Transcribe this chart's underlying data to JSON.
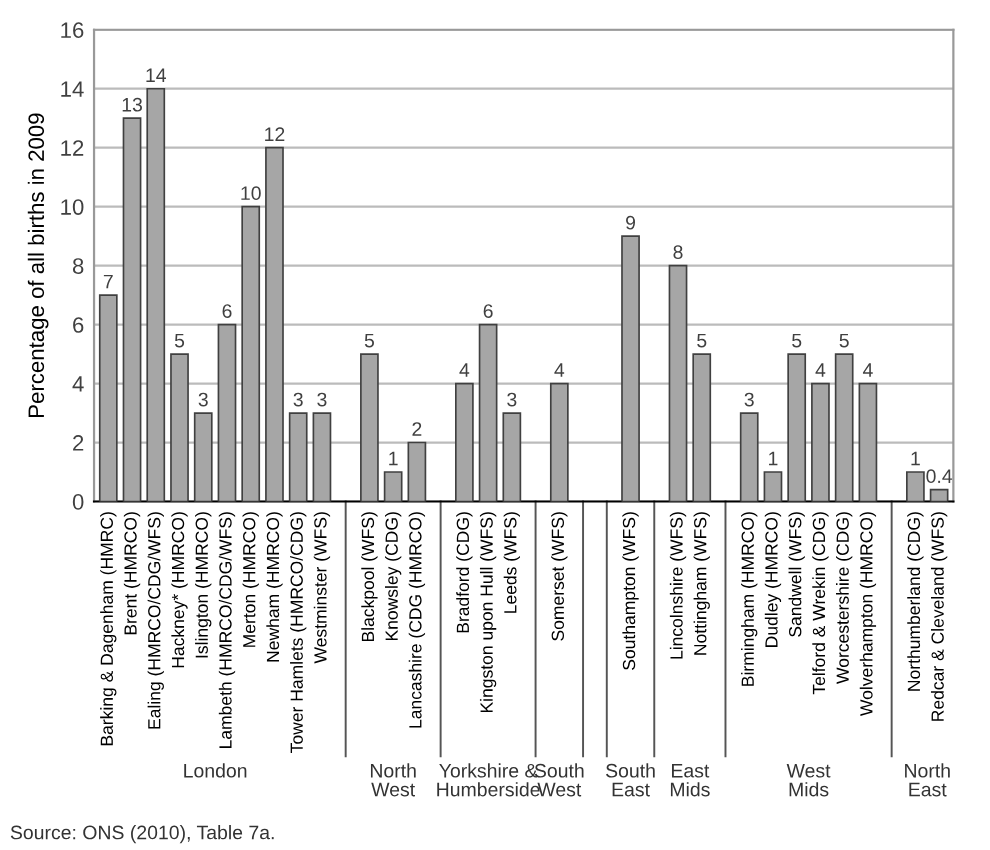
{
  "chart_data": {
    "type": "bar",
    "ylabel": "Percentage of all births in 2009",
    "categories": [
      "Barking & Dagenham (HMRC)",
      "Brent (HMRCO)",
      "Ealing (HMRCO/CDG/WFS)",
      "Hackney* (HMRCO)",
      "Islington (HMRCO)",
      "Lambeth (HMRCO/CDG/WFS)",
      "Merton (HMRCO)",
      "Newham (HMRCO)",
      "Tower Hamlets (HMRCO/CDG)",
      "Westminster (WFS)",
      null,
      "Blackpool (WFS)",
      "Knowsley (CDG)",
      "Lancashire (CDG (HMRCO)",
      null,
      "Bradford (CDG)",
      "Kingston upon Hull (WFS)",
      "Leeds (WFS)",
      null,
      "Somerset (WFS)",
      null,
      null,
      "Southampton (WFS)",
      null,
      "Lincolnshire (WFS)",
      "Nottingham (WFS)",
      null,
      "Birmingham (HMRCO)",
      "Dudley (HMRCO)",
      "Sandwell (WFS)",
      "Telford & Wrekin (CDG)",
      "Worcestershire (CDG)",
      "Wolverhampton (HMRCO)",
      null,
      "Northumberland (CDG)",
      "Redcar & Cleveland (WFS)"
    ],
    "values": [
      7,
      13,
      14,
      5,
      3,
      6,
      10,
      12,
      3,
      3,
      null,
      5,
      1,
      2,
      null,
      4,
      6,
      3,
      null,
      4,
      null,
      null,
      9,
      null,
      8,
      5,
      null,
      3,
      1,
      5,
      4,
      5,
      4,
      null,
      1,
      0.4
    ],
    "color": "#a6a6a6",
    "data_labels": true,
    "ylim": [
      0,
      16
    ],
    "yticks": [
      0,
      2,
      4,
      6,
      8,
      10,
      12,
      14,
      16
    ],
    "grid": "y",
    "annotations": [
      "London",
      "North\nWest",
      "Yorkshire &\nHumberside",
      "South\nWest",
      "South\nEast",
      "East\nMids",
      "West\nMids",
      "North\nEast",
      "Source: ONS (2010), Table 7a."
    ]
  }
}
